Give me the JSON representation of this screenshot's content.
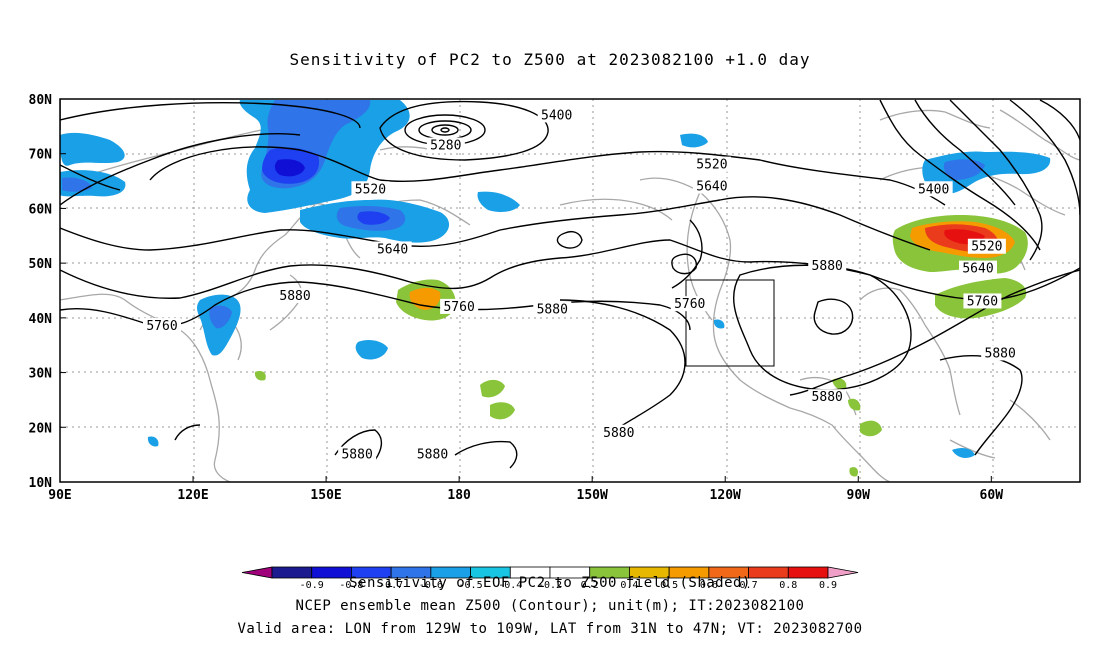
{
  "title": "Sensitivity of PC2 to Z500 at 2023082100 +1.0 day",
  "lat_labels": [
    "80N",
    "70N",
    "60N",
    "50N",
    "40N",
    "30N",
    "20N",
    "10N"
  ],
  "lon_labels": [
    "90E",
    "120E",
    "150E",
    "180",
    "150W",
    "120W",
    "90W",
    "60W"
  ],
  "contour_labels": [
    {
      "text": "5400",
      "lon": -158,
      "lat": 77
    },
    {
      "text": "5280",
      "lon": 177,
      "lat": 71.5
    },
    {
      "text": "5520",
      "lon": 160,
      "lat": 63.5
    },
    {
      "text": "5520",
      "lon": -123,
      "lat": 68
    },
    {
      "text": "5640",
      "lon": -123,
      "lat": 64
    },
    {
      "text": "5400",
      "lon": -73,
      "lat": 63.5
    },
    {
      "text": "5640",
      "lon": 165,
      "lat": 52.5
    },
    {
      "text": "5520",
      "lon": -61,
      "lat": 53
    },
    {
      "text": "5640",
      "lon": -63,
      "lat": 49
    },
    {
      "text": "5880",
      "lon": -97,
      "lat": 49.5
    },
    {
      "text": "5760",
      "lon": -62,
      "lat": 43
    },
    {
      "text": "5880",
      "lon": 143,
      "lat": 44
    },
    {
      "text": "5760",
      "lon": 180,
      "lat": 42
    },
    {
      "text": "5880",
      "lon": -159,
      "lat": 41.5
    },
    {
      "text": "5760",
      "lon": -128,
      "lat": 42.5
    },
    {
      "text": "5760",
      "lon": 113,
      "lat": 38.5
    },
    {
      "text": "5880",
      "lon": -58,
      "lat": 33.5
    },
    {
      "text": "5880",
      "lon": -97,
      "lat": 25.5
    },
    {
      "text": "5880",
      "lon": -144,
      "lat": 19
    },
    {
      "text": "5880",
      "lon": 157,
      "lat": 15
    },
    {
      "text": "5880",
      "lon": 174,
      "lat": 15
    }
  ],
  "colorbar": {
    "colors": [
      "#a0007c",
      "#1b1b8f",
      "#0f0fd6",
      "#1e40f0",
      "#2f74e8",
      "#1aa0e6",
      "#18c6e4",
      "#ffffff",
      "#ffffff",
      "#8ac43a",
      "#e6b800",
      "#f59b00",
      "#f06818",
      "#ea3c1c",
      "#e61010",
      "#f0a0c8"
    ],
    "labels": [
      "-0.9",
      "-0.8",
      "-0.7",
      "-0.6",
      "-0.5",
      "-0.4",
      "-0.2",
      "0.2",
      "0.4",
      "0.5",
      "0.6",
      "0.7",
      "0.8",
      "0.9"
    ]
  },
  "footer": {
    "line1": "Sensitivity of EOF PC2 to Z500 field (Shaded)",
    "line2": "NCEP ensemble mean Z500 (Contour); unit(m); IT:2023082100",
    "line3": "Valid area: LON from 129W to 109W, LAT from 31N to 47N; VT: 2023082700"
  }
}
